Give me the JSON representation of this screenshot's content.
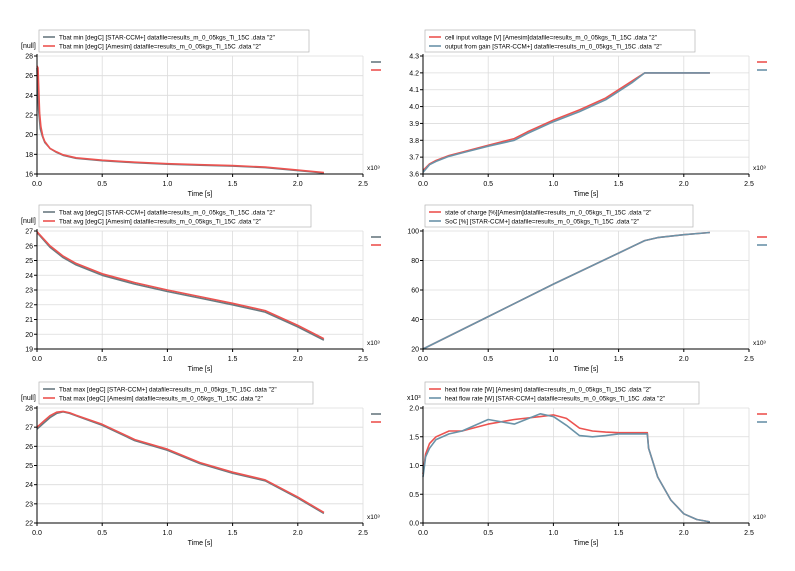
{
  "colors": {
    "red": "#ec5350",
    "gray": "#697a80",
    "blue": "#6a93a8",
    "grid": "#dcdcdc",
    "axis": "#000000"
  },
  "chart_data": [
    {
      "type": "line",
      "y_unit_label": "[null]",
      "x_multiplier": "x10³",
      "xlabel": "Time [s]",
      "xlim": [
        0,
        2.5
      ],
      "ylim": [
        16,
        28
      ],
      "xticks": [
        0.0,
        0.5,
        1.0,
        1.5,
        2.0,
        2.5
      ],
      "xtick_labels": [
        "0.0",
        "0.5",
        "1.0",
        "1.5",
        "2.0",
        "2.5"
      ],
      "yticks": [
        16,
        18,
        20,
        22,
        24,
        26,
        28
      ],
      "ytick_labels": [
        "16",
        "18",
        "20",
        "22",
        "24",
        "26",
        "28"
      ],
      "grid": true,
      "legend_position": "top-left",
      "series": [
        {
          "name": "Tbat min [degC] [STAR-CCM+] datafile=results_m_0_05kgs_Ti_15C .data  \"2\"",
          "color": "#697a80",
          "x": [
            0,
            0.012,
            0.025,
            0.04,
            0.06,
            0.1,
            0.15,
            0.2,
            0.3,
            0.5,
            0.75,
            1.0,
            1.25,
            1.5,
            1.75,
            2.0,
            2.2
          ],
          "y": [
            26.8,
            22.5,
            20.6,
            19.9,
            19.2,
            18.6,
            18.2,
            17.9,
            17.6,
            17.35,
            17.15,
            17.0,
            16.9,
            16.8,
            16.65,
            16.35,
            16.1
          ]
        },
        {
          "name": "Tbat min [degC] [Amesim] datafile=results_m_0_05kgs_Ti_15C .data  \"2\"",
          "color": "#ec5350",
          "x": [
            0,
            0.008,
            0.02,
            0.03,
            0.045,
            0.06,
            0.1,
            0.15,
            0.2,
            0.3,
            0.5,
            0.75,
            1.0,
            1.25,
            1.5,
            1.75,
            2.0,
            2.2
          ],
          "y": [
            27.0,
            26.8,
            22.2,
            20.8,
            19.8,
            19.3,
            18.6,
            18.25,
            17.95,
            17.65,
            17.4,
            17.2,
            17.05,
            16.95,
            16.85,
            16.7,
            16.4,
            16.15
          ]
        }
      ]
    },
    {
      "type": "line",
      "y_unit_label": "",
      "x_multiplier": "x10³",
      "xlabel": "Time [s]",
      "xlim": [
        0,
        2.5
      ],
      "ylim": [
        3.6,
        4.3
      ],
      "xticks": [
        0.0,
        0.5,
        1.0,
        1.5,
        2.0,
        2.5
      ],
      "xtick_labels": [
        "0.0",
        "0.5",
        "1.0",
        "1.5",
        "2.0",
        "2.5"
      ],
      "yticks": [
        3.6,
        3.7,
        3.8,
        3.9,
        4.0,
        4.1,
        4.2,
        4.3
      ],
      "ytick_labels": [
        "3.6",
        "3.7",
        "3.8",
        "3.9",
        "4.0",
        "4.1",
        "4.2",
        "4.3"
      ],
      "grid": true,
      "legend_position": "top-left",
      "series": [
        {
          "name": "cell input voltage [V] [Amesim]datafile=results_m_0_05kgs_Ti_15C .data  \"2\"",
          "color": "#ec5350",
          "x": [
            0,
            0.05,
            0.1,
            0.2,
            0.3,
            0.5,
            0.7,
            0.8,
            1.0,
            1.2,
            1.4,
            1.6,
            1.7,
            2.2
          ],
          "y": [
            3.62,
            3.66,
            3.68,
            3.71,
            3.73,
            3.77,
            3.81,
            3.85,
            3.92,
            3.98,
            4.05,
            4.15,
            4.2,
            4.2
          ]
        },
        {
          "name": "output from gain [STAR-CCM+] datafile=results_m_0_05kgs_Ti_15C .data  \"2\"",
          "color": "#6a93a8",
          "x": [
            0,
            0.05,
            0.1,
            0.2,
            0.3,
            0.5,
            0.7,
            0.8,
            1.0,
            1.2,
            1.4,
            1.6,
            1.7,
            2.2
          ],
          "y": [
            3.61,
            3.655,
            3.675,
            3.705,
            3.725,
            3.765,
            3.8,
            3.84,
            3.91,
            3.97,
            4.04,
            4.14,
            4.2,
            4.2
          ]
        }
      ]
    },
    {
      "type": "line",
      "y_unit_label": "[null]",
      "x_multiplier": "x10³",
      "xlabel": "Time [s]",
      "xlim": [
        0,
        2.5
      ],
      "ylim": [
        19,
        27
      ],
      "xticks": [
        0.0,
        0.5,
        1.0,
        1.5,
        2.0,
        2.5
      ],
      "xtick_labels": [
        "0.0",
        "0.5",
        "1.0",
        "1.5",
        "2.0",
        "2.5"
      ],
      "yticks": [
        19,
        20,
        21,
        22,
        23,
        24,
        25,
        26,
        27
      ],
      "ytick_labels": [
        "19",
        "20",
        "21",
        "22",
        "23",
        "24",
        "25",
        "26",
        "27"
      ],
      "grid": true,
      "legend_position": "top-left",
      "series": [
        {
          "name": "Tbat avg [degC] [STAR-CCM+] datafile=results_m_0_05kgs_Ti_15C .data  \"2\"",
          "color": "#697a80",
          "x": [
            0,
            0.1,
            0.2,
            0.3,
            0.5,
            0.75,
            1.0,
            1.25,
            1.5,
            1.75,
            2.0,
            2.2
          ],
          "y": [
            26.9,
            25.9,
            25.2,
            24.7,
            24.0,
            23.4,
            22.9,
            22.45,
            22.0,
            21.5,
            20.5,
            19.6
          ]
        },
        {
          "name": "Tbat avg [degC] [Amesim]  datafile=results_m_0_05kgs_Ti_15C .data  \"2\"",
          "color": "#ec5350",
          "x": [
            0,
            0.1,
            0.2,
            0.3,
            0.5,
            0.75,
            1.0,
            1.25,
            1.5,
            1.75,
            2.0,
            2.2
          ],
          "y": [
            26.95,
            26.0,
            25.3,
            24.8,
            24.1,
            23.5,
            23.0,
            22.55,
            22.1,
            21.6,
            20.6,
            19.7
          ]
        }
      ]
    },
    {
      "type": "line",
      "y_unit_label": "",
      "x_multiplier": "x10³",
      "xlabel": "Time [s]",
      "xlim": [
        0,
        2.5
      ],
      "ylim": [
        20,
        100
      ],
      "xticks": [
        0.0,
        0.5,
        1.0,
        1.5,
        2.0,
        2.5
      ],
      "xtick_labels": [
        "0.0",
        "0.5",
        "1.0",
        "1.5",
        "2.0",
        "2.5"
      ],
      "yticks": [
        20,
        40,
        60,
        80,
        100
      ],
      "ytick_labels": [
        "20",
        "40",
        "60",
        "80",
        "100"
      ],
      "grid": true,
      "legend_position": "top-left",
      "series": [
        {
          "name": "state of charge [%][Amesim]datafile=results_m_0_05kgs_Ti_15C .data  \"2\"",
          "color": "#ec5350",
          "x": [
            0,
            0.5,
            1.0,
            1.5,
            1.7,
            1.8,
            2.0,
            2.2
          ],
          "y": [
            20,
            42,
            64,
            85,
            93.5,
            95.5,
            97.5,
            99
          ]
        },
        {
          "name": "SoC [%] [STAR-CCM+] datafile=results_m_0_05kgs_Ti_15C .data  \"2\"",
          "color": "#6a93a8",
          "x": [
            0,
            0.5,
            1.0,
            1.5,
            1.7,
            1.8,
            2.0,
            2.2
          ],
          "y": [
            20,
            42,
            64,
            85,
            93.5,
            95.5,
            97.5,
            99
          ]
        }
      ]
    },
    {
      "type": "line",
      "y_unit_label": "[null]",
      "x_multiplier": "x10³",
      "xlabel": "Time [s]",
      "xlim": [
        0,
        2.5
      ],
      "ylim": [
        22,
        28
      ],
      "xticks": [
        0.0,
        0.5,
        1.0,
        1.5,
        2.0,
        2.5
      ],
      "xtick_labels": [
        "0.0",
        "0.5",
        "1.0",
        "1.5",
        "2.0",
        "2.5"
      ],
      "yticks": [
        22,
        23,
        24,
        25,
        26,
        27,
        28
      ],
      "ytick_labels": [
        "22",
        "23",
        "24",
        "25",
        "26",
        "27",
        "28"
      ],
      "grid": true,
      "legend_position": "top-left",
      "series": [
        {
          "name": "Tbat max [degC] [STAR-CCM+] datafile=results_m_0_05kgs_Ti_15C .data  \"2\"",
          "color": "#697a80",
          "x": [
            0,
            0.05,
            0.1,
            0.15,
            0.2,
            0.25,
            0.3,
            0.5,
            0.75,
            1.0,
            1.25,
            1.5,
            1.75,
            2.0,
            2.2
          ],
          "y": [
            26.9,
            27.2,
            27.5,
            27.72,
            27.8,
            27.72,
            27.6,
            27.1,
            26.3,
            25.8,
            25.1,
            24.6,
            24.2,
            23.3,
            22.5
          ]
        },
        {
          "name": "Tbat max [degC] [Amesim]  datafile=results_m_0_05kgs_Ti_15C .data  \"2\"",
          "color": "#ec5350",
          "x": [
            0,
            0.05,
            0.1,
            0.15,
            0.2,
            0.25,
            0.3,
            0.5,
            0.75,
            1.0,
            1.25,
            1.5,
            1.75,
            2.0,
            2.2
          ],
          "y": [
            27.0,
            27.3,
            27.6,
            27.78,
            27.82,
            27.75,
            27.62,
            27.15,
            26.35,
            25.85,
            25.15,
            24.65,
            24.25,
            23.35,
            22.55
          ]
        }
      ]
    },
    {
      "type": "line",
      "y_unit_label": "x10³",
      "x_multiplier": "x10³",
      "xlabel": "Time [s]",
      "xlim": [
        0,
        2.5
      ],
      "ylim": [
        0,
        2.0
      ],
      "xticks": [
        0.0,
        0.5,
        1.0,
        1.5,
        2.0,
        2.5
      ],
      "xtick_labels": [
        "0.0",
        "0.5",
        "1.0",
        "1.5",
        "2.0",
        "2.5"
      ],
      "yticks": [
        0.0,
        0.5,
        1.0,
        1.5,
        2.0
      ],
      "ytick_labels": [
        "0.0",
        "0.5",
        "1.0",
        "1.5",
        "2.0"
      ],
      "grid": true,
      "legend_position": "top-left",
      "series": [
        {
          "name": "heat flow rate [W] [Amesim] datafile=results_m_0_05kgs_Ti_15C .data  \"2\"",
          "color": "#ec5350",
          "x": [
            0,
            0.02,
            0.05,
            0.1,
            0.2,
            0.3,
            0.5,
            0.7,
            0.9,
            1.0,
            1.1,
            1.2,
            1.3,
            1.4,
            1.5,
            1.72,
            1.73,
            1.8,
            1.9,
            2.0,
            2.1,
            2.2
          ],
          "y": [
            0.85,
            1.2,
            1.38,
            1.5,
            1.6,
            1.6,
            1.72,
            1.8,
            1.85,
            1.88,
            1.82,
            1.65,
            1.6,
            1.58,
            1.57,
            1.57,
            1.3,
            0.8,
            0.4,
            0.16,
            0.06,
            0.02
          ]
        },
        {
          "name": "heat flow rate [W] [STAR-CCM+] datafile=results_m_0_05kgs_Ti_15C .data  \"2\"",
          "color": "#6a93a8",
          "x": [
            0,
            0.02,
            0.05,
            0.1,
            0.2,
            0.3,
            0.5,
            0.7,
            0.9,
            1.0,
            1.1,
            1.2,
            1.3,
            1.4,
            1.5,
            1.72,
            1.73,
            1.8,
            1.9,
            2.0,
            2.1,
            2.2
          ],
          "y": [
            0.8,
            1.15,
            1.3,
            1.45,
            1.55,
            1.6,
            1.8,
            1.72,
            1.9,
            1.85,
            1.7,
            1.52,
            1.5,
            1.52,
            1.55,
            1.55,
            1.3,
            0.8,
            0.4,
            0.16,
            0.06,
            0.02
          ]
        }
      ]
    }
  ]
}
